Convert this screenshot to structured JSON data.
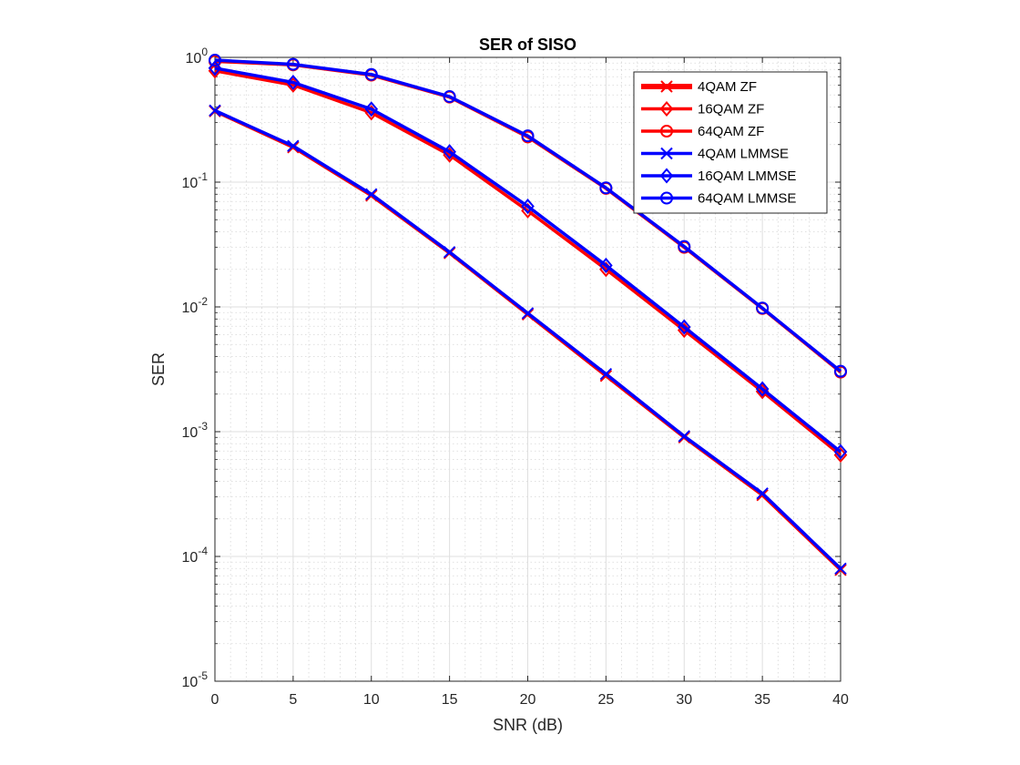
{
  "chart_data": {
    "type": "line",
    "title": "SER of SISO",
    "xlabel": "SNR (dB)",
    "ylabel": "SER",
    "xlim": [
      0,
      40
    ],
    "ylim": [
      1e-05,
      1
    ],
    "yscale": "log",
    "xticks": [
      0,
      5,
      10,
      15,
      20,
      25,
      30,
      35,
      40
    ],
    "yticks": [
      {
        "value": 1e-05,
        "base": "10",
        "exp": "-5"
      },
      {
        "value": 0.0001,
        "base": "10",
        "exp": "-4"
      },
      {
        "value": 0.001,
        "base": "10",
        "exp": "-3"
      },
      {
        "value": 0.01,
        "base": "10",
        "exp": "-2"
      },
      {
        "value": 0.1,
        "base": "10",
        "exp": "-1"
      },
      {
        "value": 1,
        "base": "10",
        "exp": "0"
      }
    ],
    "grid": true,
    "legend_position": "top-right",
    "x": [
      0,
      5,
      10,
      15,
      20,
      25,
      30,
      35,
      40
    ],
    "series": [
      {
        "name": "4QAM ZF",
        "color": "#ff0000",
        "marker": "x",
        "values": [
          0.37,
          0.19,
          0.078,
          0.027,
          0.0087,
          0.0028,
          0.0009,
          0.00031,
          7.8e-05
        ]
      },
      {
        "name": "16QAM ZF",
        "color": "#ff0000",
        "marker": "diamond",
        "values": [
          0.78,
          0.6,
          0.36,
          0.165,
          0.059,
          0.02,
          0.0065,
          0.0021,
          0.00065
        ]
      },
      {
        "name": "64QAM ZF",
        "color": "#ff0000",
        "marker": "circle",
        "values": [
          0.93,
          0.87,
          0.72,
          0.48,
          0.23,
          0.089,
          0.03,
          0.0097,
          0.003
        ]
      },
      {
        "name": "4QAM LMMSE",
        "color": "#0000ff",
        "marker": "x",
        "values": [
          0.375,
          0.195,
          0.08,
          0.0275,
          0.0089,
          0.0029,
          0.00092,
          0.00032,
          8e-05
        ]
      },
      {
        "name": "16QAM LMMSE",
        "color": "#0000ff",
        "marker": "diamond",
        "values": [
          0.82,
          0.63,
          0.385,
          0.175,
          0.064,
          0.0215,
          0.0069,
          0.0022,
          0.00069
        ]
      },
      {
        "name": "64QAM LMMSE",
        "color": "#0000ff",
        "marker": "circle",
        "values": [
          0.95,
          0.88,
          0.73,
          0.485,
          0.235,
          0.09,
          0.0305,
          0.0098,
          0.00305
        ]
      }
    ]
  }
}
